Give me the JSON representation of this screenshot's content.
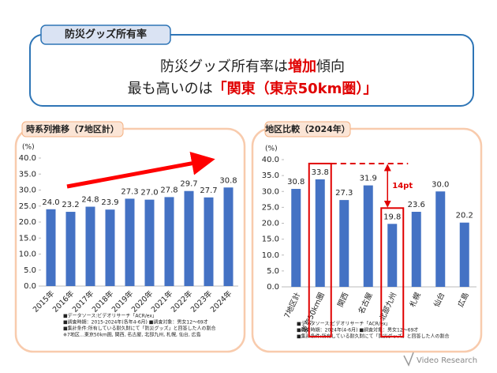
{
  "header": {
    "tab": "防災グッズ所有率",
    "headline": [
      [
        {
          "text": "防災グッズ所有率は"
        },
        {
          "text": "増加",
          "emphasis": true
        },
        {
          "text": "傾向"
        }
      ],
      [
        {
          "text": "最も高いのは"
        },
        {
          "text": "「関東（東京50km圏）」",
          "emphasis": true
        }
      ]
    ]
  },
  "chart_data": [
    {
      "type": "bar",
      "title": "時系列推移（7地区計）",
      "y_unit": "(%)",
      "color": "#4472c4",
      "categories": [
        "2015年",
        "2016年",
        "2017年",
        "2018年",
        "2019年",
        "2020年",
        "2021年",
        "2022年",
        "2023年",
        "2024年"
      ],
      "values": [
        24.0,
        23.2,
        24.8,
        23.9,
        27.3,
        27.0,
        27.8,
        29.7,
        27.7,
        30.8
      ],
      "value_labels": [
        "24.0",
        "23.2",
        "24.8",
        "23.9",
        "27.3",
        "27.0",
        "27.8",
        "29.7",
        "27.7",
        "30.8"
      ],
      "ylim": [
        0,
        40
      ],
      "yticks": [
        {
          "value": 0,
          "label": "0.0"
        },
        {
          "value": 5,
          "label": "5.0"
        },
        {
          "value": 10,
          "label": "10.0"
        },
        {
          "value": 15,
          "label": "15.0"
        },
        {
          "value": 20,
          "label": "20.0"
        },
        {
          "value": 25,
          "label": "25.0"
        },
        {
          "value": 30,
          "label": "30.0"
        },
        {
          "value": 35,
          "label": "35.0"
        },
        {
          "value": 40,
          "label": "40.0"
        }
      ],
      "notes": [
        "■データソース:ビデオリサーチ「ACR/ex」",
        "■調査時期：2015-2024年(各年4-6月)  ■調査対象：男女12～69才",
        "■集計条件:所有している耐久財にて「防災グッズ」と回答した人の割合",
        "※7地区…東京50km圏, 関西, 名古屋, 北部九州, 札幌, 仙台, 広島"
      ]
    },
    {
      "type": "bar",
      "title": "地区比較（2024年）",
      "y_unit": "(%)",
      "color": "#4472c4",
      "categories": [
        "7地区計",
        "東京50km圏",
        "関西",
        "名古屋",
        "北部九州",
        "札幌",
        "仙台",
        "広島"
      ],
      "values": [
        30.8,
        33.8,
        27.3,
        31.9,
        19.8,
        23.6,
        30.0,
        20.2
      ],
      "value_labels": [
        "30.8",
        "33.8",
        "27.3",
        "31.9",
        "19.8",
        "23.6",
        "30.0",
        "20.2"
      ],
      "ylim": [
        0,
        40
      ],
      "yticks": [
        {
          "value": 0,
          "label": "0.0"
        },
        {
          "value": 5,
          "label": "5.0"
        },
        {
          "value": 10,
          "label": "10.0"
        },
        {
          "value": 15,
          "label": "15.0"
        },
        {
          "value": 20,
          "label": "20.0"
        },
        {
          "value": 25,
          "label": "25.0"
        },
        {
          "value": 30,
          "label": "30.0"
        },
        {
          "value": 35,
          "label": "35.0"
        },
        {
          "value": 40,
          "label": "40.0"
        }
      ],
      "annotation": "14pt",
      "notes": [
        "■データソース:ビデオリサーチ「ACR/ex」",
        "■調査時期：2024年(4-6月)  ■調査対象：男女12～69才",
        "■集計条件:所有している耐久財にて「防災グッズ」と回答した人の割合"
      ]
    }
  ],
  "footer": {
    "logo": "Video Research"
  }
}
